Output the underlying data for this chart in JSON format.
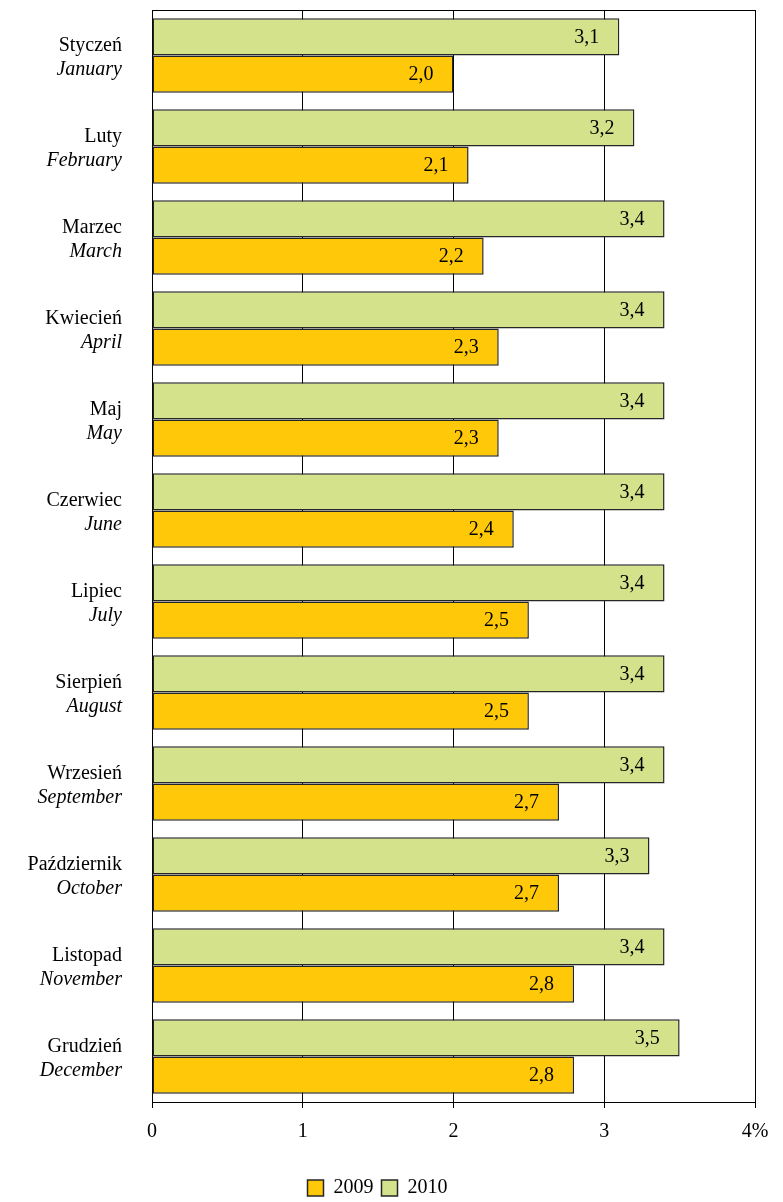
{
  "chart_data": {
    "type": "bar",
    "orientation": "horizontal",
    "categories": [
      "Styczeń\nJanuary",
      "Luty\nFebruary",
      "Marzec\nMarch",
      "Kwiecień\nApril",
      "Maj\nMay",
      "Czerwiec\nJune",
      "Lipiec\nJuly",
      "Sierpień\nAugust",
      "Wrzesień\nSeptember",
      "Październik\nOctober",
      "Listopad\nNovember",
      "Grudzień\nDecember"
    ],
    "series": [
      {
        "name": "2009",
        "color": "#ffc90a",
        "values": [
          2.0,
          2.1,
          2.2,
          2.3,
          2.3,
          2.4,
          2.5,
          2.5,
          2.7,
          2.7,
          2.8,
          2.8
        ],
        "value_labels": [
          "2,0",
          "2,1",
          "2,2",
          "2,3",
          "2,3",
          "2,4",
          "2,5",
          "2,5",
          "2,7",
          "2,7",
          "2,8",
          "2,8"
        ]
      },
      {
        "name": "2010",
        "color": "#d4e38b",
        "values": [
          3.1,
          3.2,
          3.4,
          3.4,
          3.4,
          3.4,
          3.4,
          3.4,
          3.4,
          3.3,
          3.4,
          3.5
        ],
        "value_labels": [
          "3,1",
          "3,2",
          "3,4",
          "3,4",
          "3,4",
          "3,4",
          "3,4",
          "3,4",
          "3,4",
          "3,3",
          "3,4",
          "3,5"
        ]
      }
    ],
    "xlim": [
      0,
      4
    ],
    "xticks": [
      0,
      1,
      2,
      3,
      {
        "value": 4,
        "label": "4%"
      }
    ],
    "grid": "x",
    "legend": "bottom"
  }
}
